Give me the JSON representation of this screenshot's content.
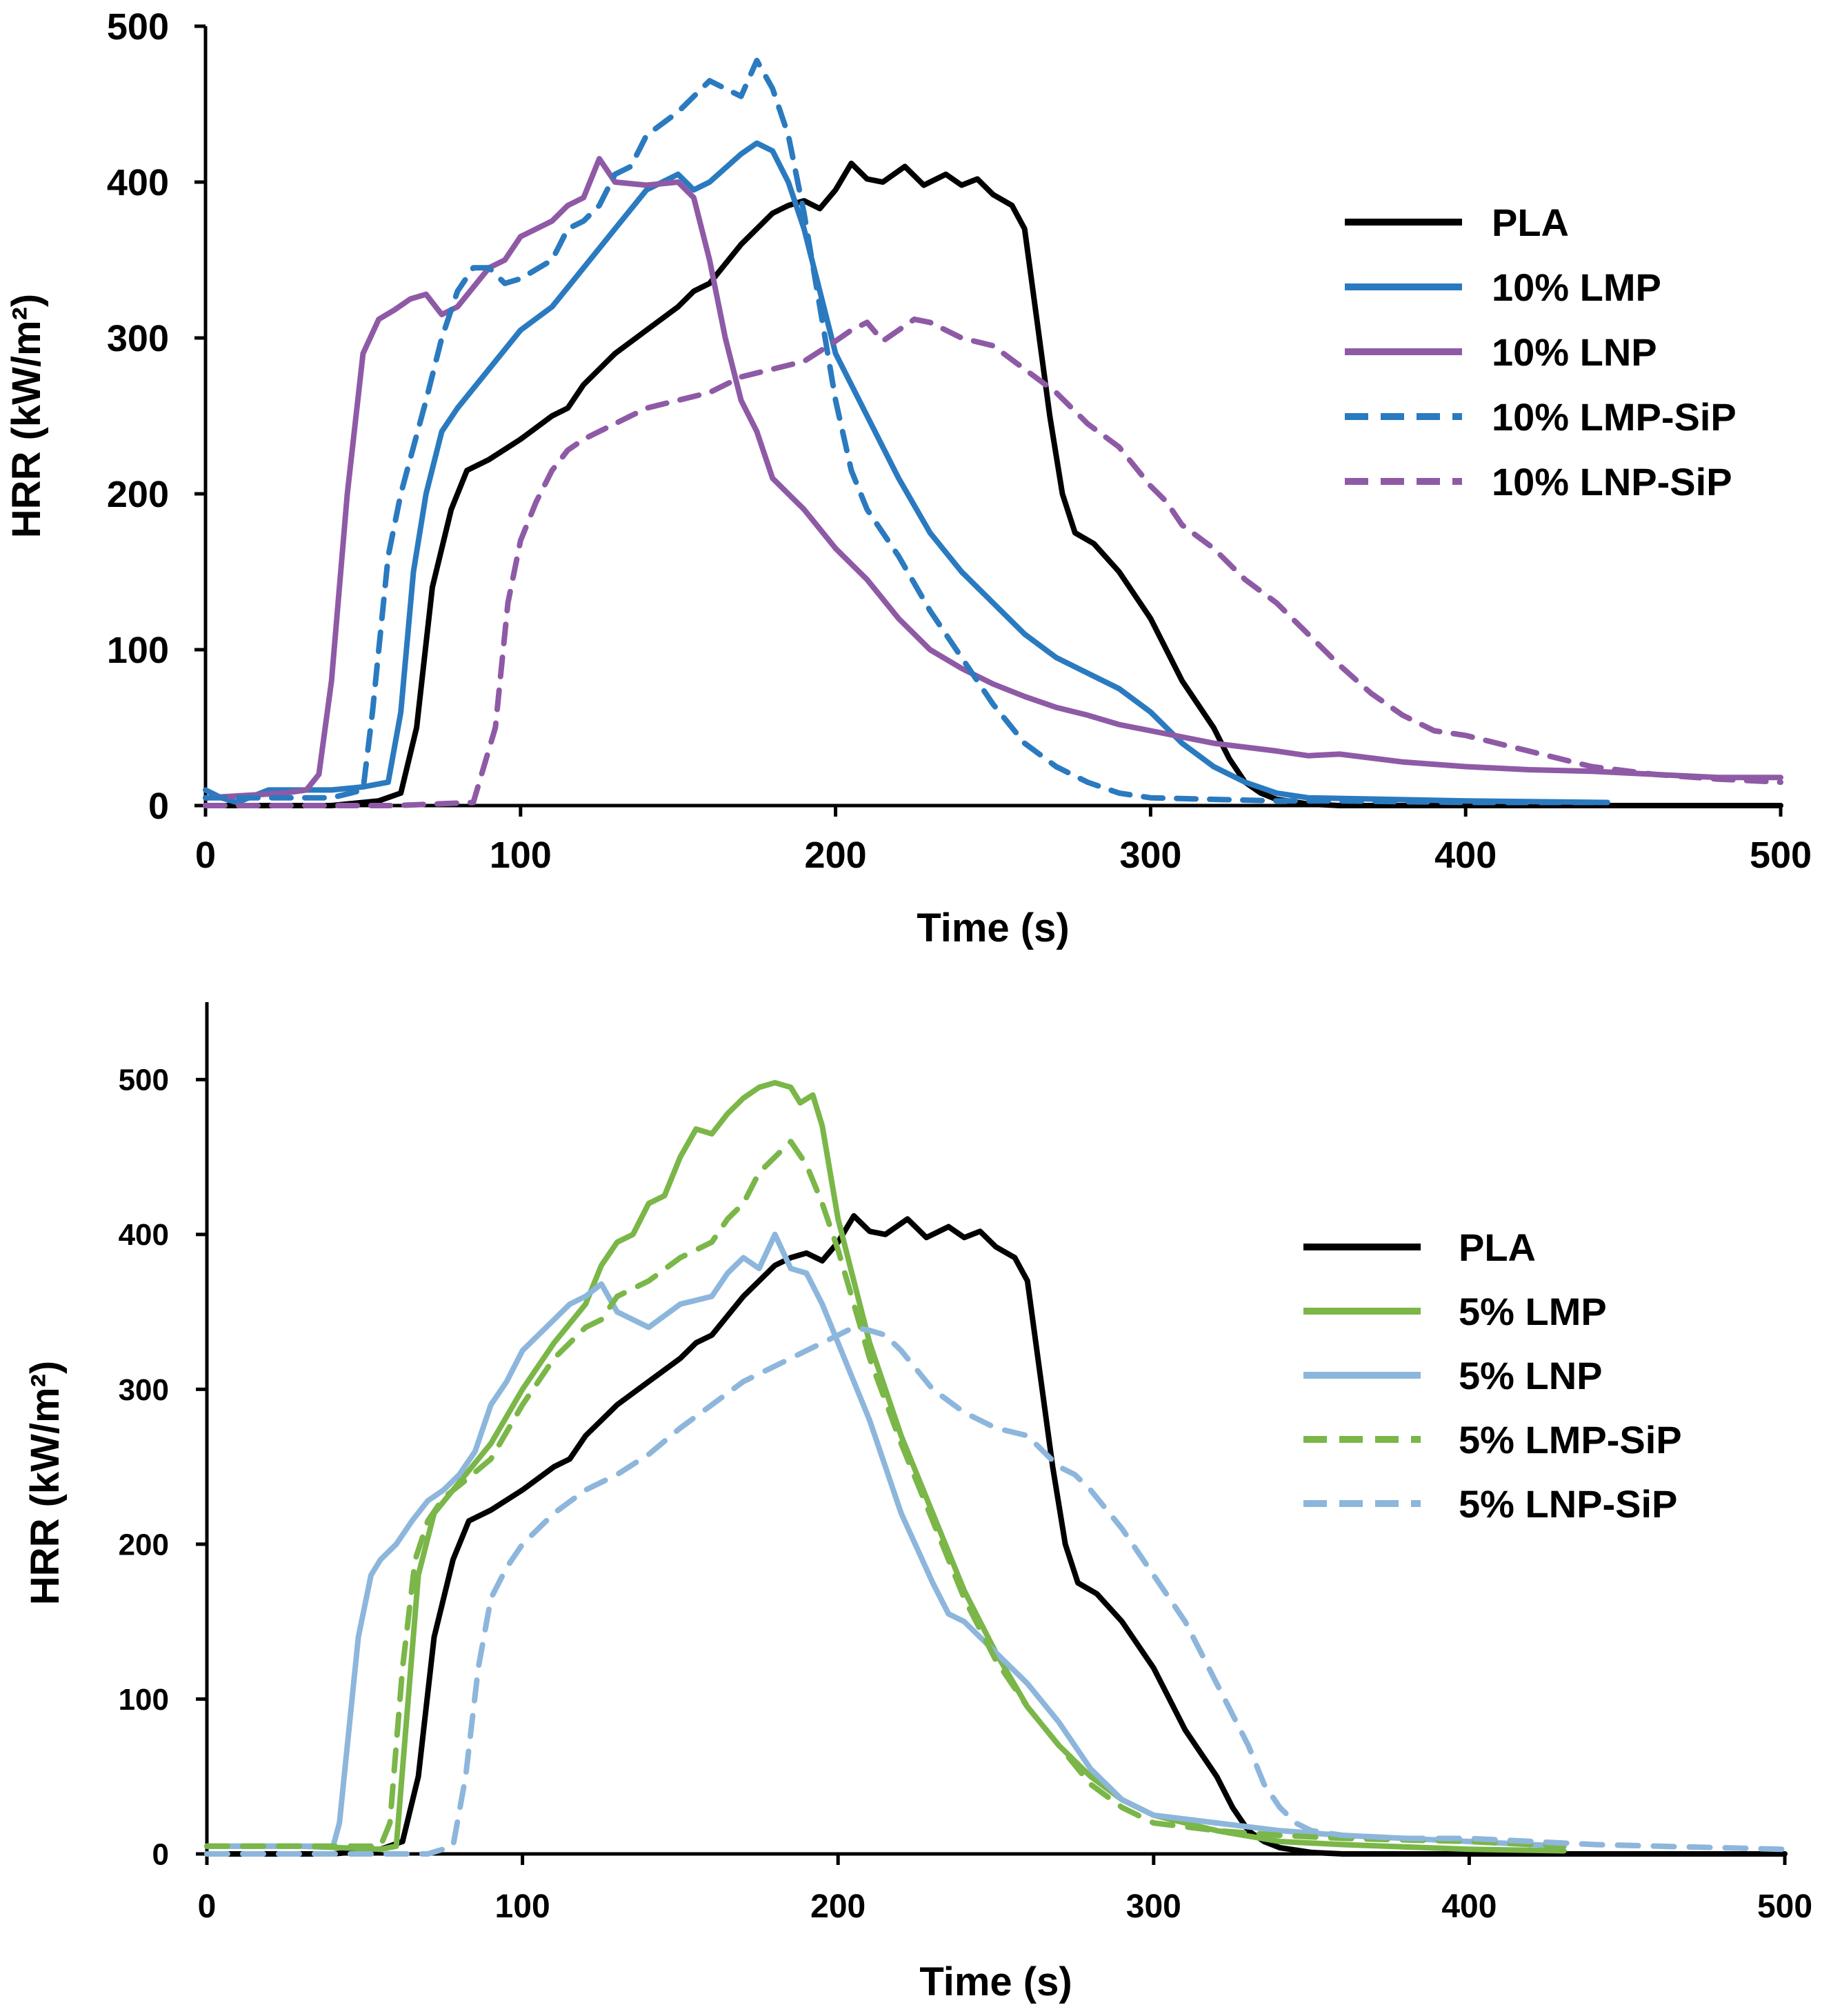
{
  "chart_data": [
    {
      "type": "line",
      "title": "",
      "xlabel": "Time (s)",
      "ylabel": "HRR (kW/m²)",
      "xlim": [
        0,
        500
      ],
      "ylim": [
        0,
        500
      ],
      "xticks": [
        0,
        100,
        200,
        300,
        400,
        500
      ],
      "yticks": [
        0,
        100,
        200,
        300,
        400,
        500
      ],
      "grid": false,
      "legend": "right",
      "series": [
        {
          "name": "PLA",
          "color": "#000000",
          "dash": "solid",
          "x": [
            0,
            40,
            55,
            62,
            67,
            72,
            78,
            83,
            90,
            100,
            110,
            115,
            120,
            125,
            130,
            140,
            150,
            155,
            160,
            170,
            180,
            185,
            190,
            195,
            200,
            205,
            210,
            215,
            222,
            228,
            235,
            240,
            245,
            250,
            256,
            260,
            264,
            268,
            272,
            276,
            282,
            290,
            300,
            310,
            320,
            325,
            330,
            335,
            340,
            350,
            360,
            500
          ],
          "y": [
            0,
            0,
            3,
            8,
            50,
            140,
            190,
            215,
            222,
            235,
            250,
            255,
            270,
            280,
            290,
            305,
            320,
            330,
            335,
            360,
            380,
            385,
            388,
            383,
            395,
            412,
            402,
            400,
            410,
            398,
            405,
            398,
            402,
            392,
            385,
            370,
            310,
            250,
            200,
            175,
            168,
            150,
            120,
            80,
            50,
            30,
            15,
            8,
            4,
            1,
            0,
            0
          ]
        },
        {
          "name": "10% LMP",
          "color": "#2a7ac0",
          "dash": "solid",
          "x": [
            0,
            5,
            10,
            20,
            40,
            50,
            58,
            62,
            66,
            70,
            75,
            80,
            90,
            100,
            110,
            120,
            130,
            140,
            150,
            155,
            160,
            170,
            175,
            180,
            185,
            190,
            195,
            200,
            210,
            220,
            230,
            240,
            250,
            260,
            270,
            280,
            290,
            300,
            310,
            320,
            330,
            340,
            350,
            400,
            445
          ],
          "y": [
            10,
            5,
            2,
            10,
            10,
            12,
            15,
            60,
            150,
            200,
            240,
            255,
            280,
            305,
            320,
            345,
            370,
            395,
            405,
            395,
            400,
            418,
            425,
            420,
            400,
            370,
            330,
            290,
            250,
            210,
            175,
            150,
            130,
            110,
            95,
            85,
            75,
            60,
            40,
            25,
            15,
            8,
            5,
            3,
            2
          ]
        },
        {
          "name": "10% LNP",
          "color": "#8e5aa6",
          "dash": "solid",
          "x": [
            0,
            25,
            32,
            36,
            40,
            45,
            50,
            55,
            60,
            65,
            70,
            75,
            80,
            90,
            95,
            100,
            110,
            115,
            120,
            125,
            130,
            140,
            150,
            155,
            160,
            165,
            170,
            175,
            180,
            190,
            200,
            210,
            220,
            230,
            240,
            250,
            260,
            270,
            280,
            290,
            300,
            320,
            340,
            350,
            360,
            380,
            400,
            420,
            440,
            460,
            480,
            500
          ],
          "y": [
            5,
            8,
            10,
            20,
            80,
            200,
            290,
            312,
            318,
            325,
            328,
            315,
            320,
            345,
            350,
            365,
            375,
            385,
            390,
            415,
            400,
            398,
            400,
            390,
            350,
            300,
            260,
            240,
            210,
            190,
            165,
            145,
            120,
            100,
            88,
            78,
            70,
            63,
            58,
            52,
            48,
            40,
            35,
            32,
            33,
            28,
            25,
            23,
            22,
            20,
            18,
            18
          ]
        },
        {
          "name": "10% LMP-SiP",
          "color": "#2a7ac0",
          "dash": "dashed",
          "x": [
            0,
            20,
            40,
            50,
            53,
            58,
            62,
            66,
            70,
            75,
            80,
            85,
            90,
            95,
            100,
            110,
            115,
            120,
            125,
            130,
            135,
            140,
            150,
            160,
            165,
            170,
            175,
            180,
            185,
            190,
            195,
            200,
            205,
            210,
            220,
            230,
            240,
            250,
            260,
            270,
            280,
            290,
            300,
            320,
            340,
            360,
            400,
            445
          ],
          "y": [
            5,
            5,
            5,
            10,
            60,
            160,
            200,
            230,
            260,
            300,
            330,
            345,
            345,
            335,
            338,
            350,
            370,
            375,
            385,
            405,
            410,
            430,
            445,
            465,
            460,
            455,
            478,
            460,
            430,
            380,
            320,
            260,
            215,
            190,
            160,
            125,
            95,
            65,
            40,
            25,
            15,
            8,
            5,
            4,
            3,
            3,
            2,
            2
          ]
        },
        {
          "name": "10% LNP-SiP",
          "color": "#8e5aa6",
          "dash": "dashed",
          "x": [
            0,
            60,
            85,
            92,
            96,
            100,
            105,
            110,
            115,
            120,
            130,
            140,
            150,
            160,
            170,
            180,
            190,
            200,
            205,
            210,
            215,
            220,
            225,
            230,
            240,
            250,
            260,
            270,
            280,
            290,
            300,
            305,
            310,
            320,
            330,
            340,
            350,
            360,
            370,
            380,
            390,
            400,
            420,
            440,
            460,
            480,
            500
          ],
          "y": [
            0,
            0,
            2,
            50,
            130,
            170,
            195,
            215,
            228,
            235,
            245,
            255,
            260,
            265,
            275,
            280,
            285,
            298,
            305,
            310,
            298,
            305,
            312,
            310,
            300,
            295,
            280,
            265,
            245,
            230,
            205,
            195,
            180,
            165,
            145,
            130,
            110,
            90,
            72,
            58,
            48,
            45,
            35,
            25,
            20,
            17,
            15
          ]
        }
      ]
    },
    {
      "type": "line",
      "title": "",
      "xlabel": "Time (s)",
      "ylabel": "HRR (kW/m²)",
      "xlim": [
        0,
        500
      ],
      "ylim": [
        0,
        550
      ],
      "xticks": [
        0,
        100,
        200,
        300,
        400,
        500
      ],
      "yticks": [
        0,
        100,
        200,
        300,
        400,
        500
      ],
      "grid": false,
      "legend": "right",
      "series": [
        {
          "name": "PLA",
          "color": "#000000",
          "dash": "solid",
          "x": [
            0,
            40,
            55,
            62,
            67,
            72,
            78,
            83,
            90,
            100,
            110,
            115,
            120,
            125,
            130,
            140,
            150,
            155,
            160,
            170,
            180,
            185,
            190,
            195,
            200,
            205,
            210,
            215,
            222,
            228,
            235,
            240,
            245,
            250,
            256,
            260,
            264,
            268,
            272,
            276,
            282,
            290,
            300,
            310,
            320,
            325,
            330,
            335,
            340,
            350,
            360,
            500
          ],
          "y": [
            0,
            0,
            3,
            8,
            50,
            140,
            190,
            215,
            222,
            235,
            250,
            255,
            270,
            280,
            290,
            305,
            320,
            330,
            335,
            360,
            380,
            385,
            388,
            383,
            395,
            412,
            402,
            400,
            410,
            398,
            405,
            398,
            402,
            392,
            385,
            370,
            310,
            250,
            200,
            175,
            168,
            150,
            120,
            80,
            50,
            30,
            15,
            8,
            4,
            1,
            0,
            0
          ]
        },
        {
          "name": "5% LMP",
          "color": "#7ab648",
          "dash": "solid",
          "x": [
            0,
            30,
            55,
            60,
            63,
            67,
            72,
            80,
            90,
            100,
            110,
            120,
            125,
            130,
            135,
            140,
            145,
            150,
            155,
            160,
            165,
            170,
            175,
            180,
            185,
            188,
            192,
            195,
            200,
            210,
            220,
            230,
            240,
            250,
            260,
            270,
            280,
            290,
            300,
            320,
            340,
            360,
            400,
            430
          ],
          "y": [
            5,
            5,
            3,
            5,
            80,
            180,
            220,
            240,
            265,
            300,
            330,
            355,
            380,
            395,
            400,
            420,
            425,
            450,
            468,
            465,
            478,
            488,
            495,
            498,
            495,
            485,
            490,
            470,
            410,
            330,
            270,
            220,
            170,
            130,
            95,
            70,
            50,
            35,
            25,
            15,
            8,
            6,
            3,
            2
          ]
        },
        {
          "name": "5% LNP",
          "color": "#8db6dc",
          "dash": "solid",
          "x": [
            0,
            30,
            40,
            42,
            45,
            48,
            52,
            55,
            60,
            65,
            70,
            75,
            80,
            85,
            90,
            95,
            100,
            110,
            115,
            120,
            125,
            130,
            135,
            140,
            150,
            160,
            165,
            170,
            175,
            180,
            185,
            190,
            195,
            200,
            210,
            220,
            230,
            235,
            240,
            250,
            260,
            270,
            280,
            290,
            300,
            320,
            340,
            360,
            400,
            430
          ],
          "y": [
            5,
            5,
            5,
            20,
            80,
            140,
            180,
            190,
            200,
            215,
            228,
            235,
            245,
            260,
            290,
            305,
            325,
            345,
            355,
            360,
            368,
            350,
            345,
            340,
            355,
            360,
            375,
            385,
            378,
            400,
            378,
            375,
            355,
            330,
            280,
            220,
            175,
            155,
            150,
            130,
            110,
            85,
            55,
            35,
            25,
            20,
            15,
            12,
            8,
            5
          ]
        },
        {
          "name": "5% LMP-SiP",
          "color": "#7ab648",
          "dash": "dashed",
          "x": [
            0,
            30,
            55,
            58,
            62,
            66,
            70,
            75,
            80,
            90,
            100,
            110,
            120,
            125,
            130,
            140,
            150,
            160,
            165,
            170,
            175,
            180,
            185,
            190,
            195,
            200,
            210,
            220,
            230,
            240,
            250,
            260,
            270,
            280,
            290,
            300,
            320,
            340,
            360,
            400,
            430
          ],
          "y": [
            5,
            5,
            5,
            20,
            120,
            190,
            215,
            230,
            238,
            255,
            290,
            320,
            340,
            345,
            360,
            370,
            385,
            395,
            410,
            420,
            440,
            450,
            460,
            445,
            420,
            390,
            320,
            265,
            215,
            165,
            125,
            95,
            70,
            45,
            30,
            20,
            15,
            12,
            10,
            8,
            5
          ]
        },
        {
          "name": "5% LNP-SiP",
          "color": "#8db6dc",
          "dash": "dashed",
          "x": [
            0,
            50,
            70,
            78,
            82,
            86,
            90,
            95,
            100,
            110,
            120,
            130,
            140,
            150,
            160,
            170,
            180,
            190,
            200,
            205,
            210,
            215,
            220,
            230,
            240,
            250,
            260,
            270,
            275,
            280,
            290,
            300,
            310,
            320,
            330,
            335,
            340,
            345,
            350,
            360,
            380,
            400,
            420,
            440,
            460,
            500
          ],
          "y": [
            0,
            0,
            0,
            5,
            50,
            120,
            165,
            185,
            200,
            220,
            235,
            245,
            258,
            275,
            290,
            305,
            315,
            325,
            335,
            340,
            338,
            335,
            325,
            300,
            285,
            275,
            270,
            250,
            245,
            235,
            210,
            180,
            150,
            110,
            70,
            45,
            30,
            20,
            15,
            12,
            10,
            10,
            8,
            6,
            5,
            3
          ]
        }
      ]
    }
  ]
}
